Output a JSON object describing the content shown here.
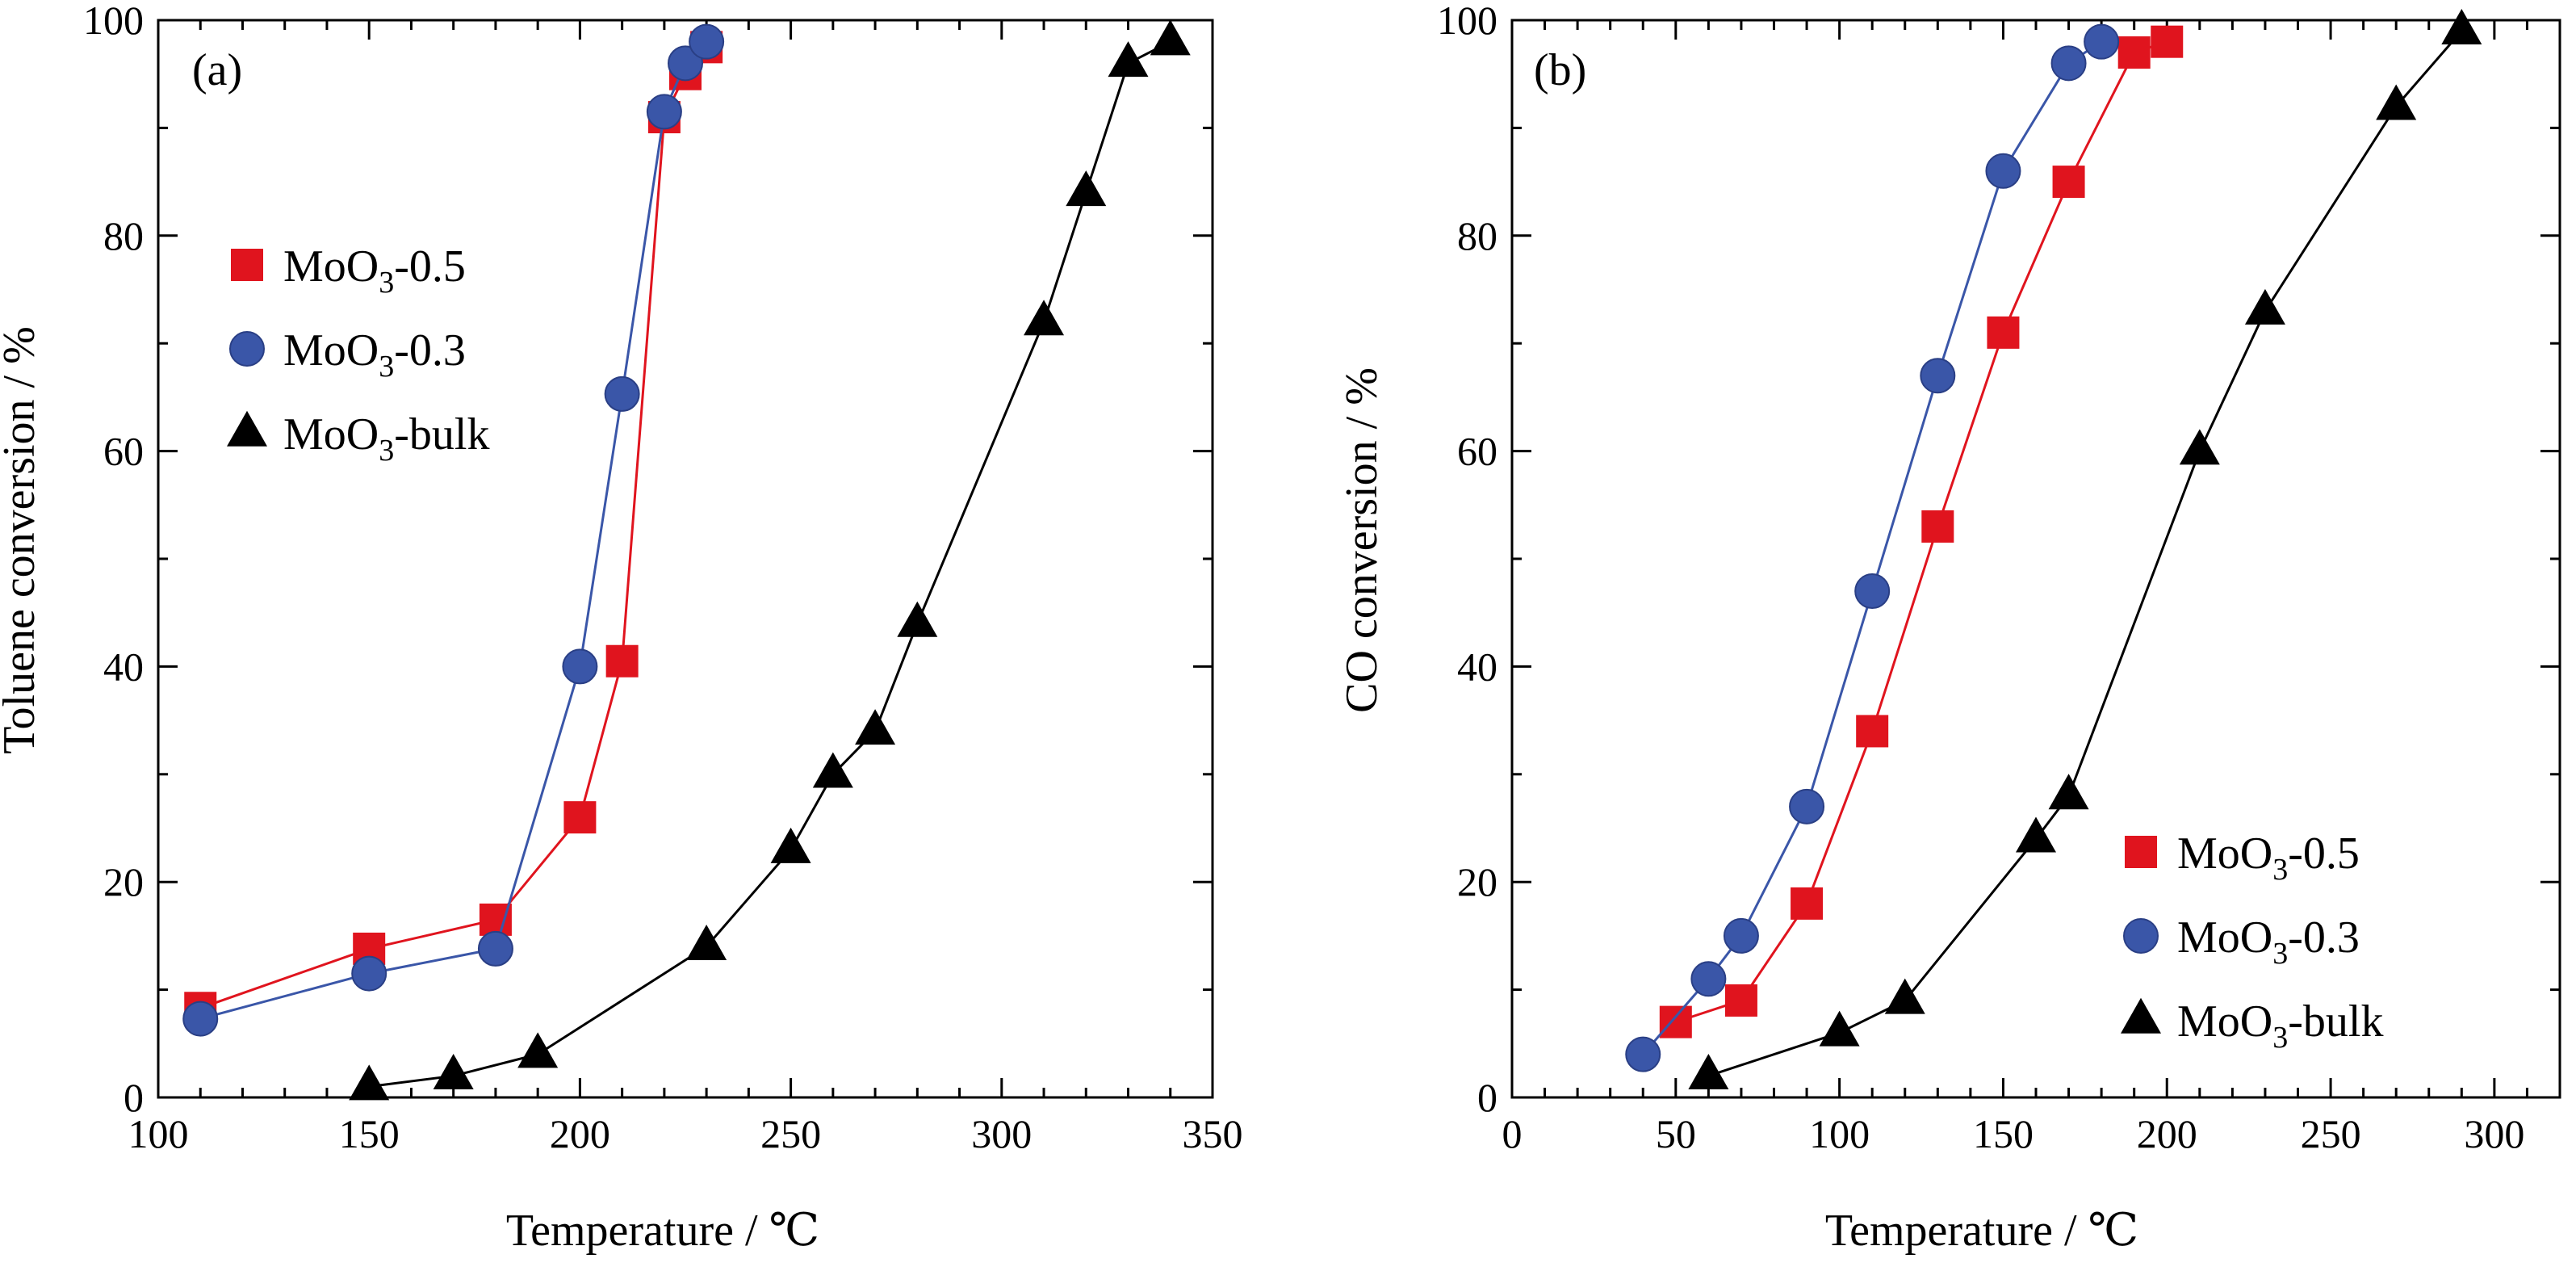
{
  "chart_data": [
    {
      "type": "line",
      "panel_label": "(a)",
      "xlabel": "Temperature / ℃",
      "ylabel": "Toluene conversion / %",
      "xlim": [
        100,
        350
      ],
      "ylim": [
        0,
        100
      ],
      "xticks": [
        100,
        150,
        200,
        250,
        300,
        350
      ],
      "yticks": [
        0,
        20,
        40,
        60,
        80,
        100
      ],
      "legend_position": "upper-left",
      "series": [
        {
          "name": "MoO3-0.5",
          "name_parts": {
            "base": "MoO",
            "sub": "3",
            "suffix": "-0.5"
          },
          "marker": "square",
          "color": "#e0141e",
          "x": [
            110,
            150,
            180,
            200,
            210,
            220,
            225,
            230
          ],
          "y": [
            8.3,
            13.8,
            16.5,
            26,
            40.5,
            91,
            95,
            97.5
          ]
        },
        {
          "name": "MoO3-0.3",
          "name_parts": {
            "base": "MoO",
            "sub": "3",
            "suffix": "-0.3"
          },
          "marker": "circle",
          "color": "#3a56a8",
          "x": [
            110,
            150,
            180,
            200,
            210,
            220,
            225,
            230
          ],
          "y": [
            7.3,
            11.5,
            13.8,
            40,
            65.3,
            91.5,
            96,
            98
          ]
        },
        {
          "name": "MoO3-bulk",
          "name_parts": {
            "base": "MoO",
            "sub": "3",
            "suffix": "-bulk"
          },
          "marker": "triangle",
          "color": "#000000",
          "x": [
            150,
            170,
            190,
            230,
            250,
            260,
            270,
            280,
            310,
            320,
            330,
            340
          ],
          "y": [
            1,
            2,
            4,
            14,
            23,
            30,
            34,
            44,
            72,
            84,
            96,
            98
          ]
        }
      ]
    },
    {
      "type": "line",
      "panel_label": "(b)",
      "xlabel": "Temperature / ℃",
      "ylabel": "CO conversion / %",
      "xlim": [
        0,
        320
      ],
      "ylim": [
        0,
        100
      ],
      "xticks": [
        0,
        50,
        100,
        150,
        200,
        250,
        300
      ],
      "yticks": [
        0,
        20,
        40,
        60,
        80,
        100
      ],
      "legend_position": "lower-right",
      "series": [
        {
          "name": "MoO3-0.5",
          "name_parts": {
            "base": "MoO",
            "sub": "3",
            "suffix": "-0.5"
          },
          "marker": "square",
          "color": "#e0141e",
          "x": [
            50,
            70,
            90,
            110,
            130,
            150,
            170,
            190,
            200
          ],
          "y": [
            7,
            9,
            18,
            34,
            53,
            71,
            85,
            97,
            98
          ]
        },
        {
          "name": "MoO3-0.3",
          "name_parts": {
            "base": "MoO",
            "sub": "3",
            "suffix": "-0.3"
          },
          "marker": "circle",
          "color": "#3a56a8",
          "x": [
            40,
            60,
            70,
            90,
            110,
            130,
            150,
            170,
            180
          ],
          "y": [
            4,
            11,
            15,
            27,
            47,
            67,
            86,
            96,
            98
          ]
        },
        {
          "name": "MoO3-bulk",
          "name_parts": {
            "base": "MoO",
            "sub": "3",
            "suffix": "-bulk"
          },
          "marker": "triangle",
          "color": "#000000",
          "x": [
            60,
            100,
            120,
            160,
            170,
            210,
            230,
            270,
            290
          ],
          "y": [
            2,
            6,
            9,
            24,
            28,
            60,
            73,
            92,
            99
          ]
        }
      ]
    }
  ]
}
